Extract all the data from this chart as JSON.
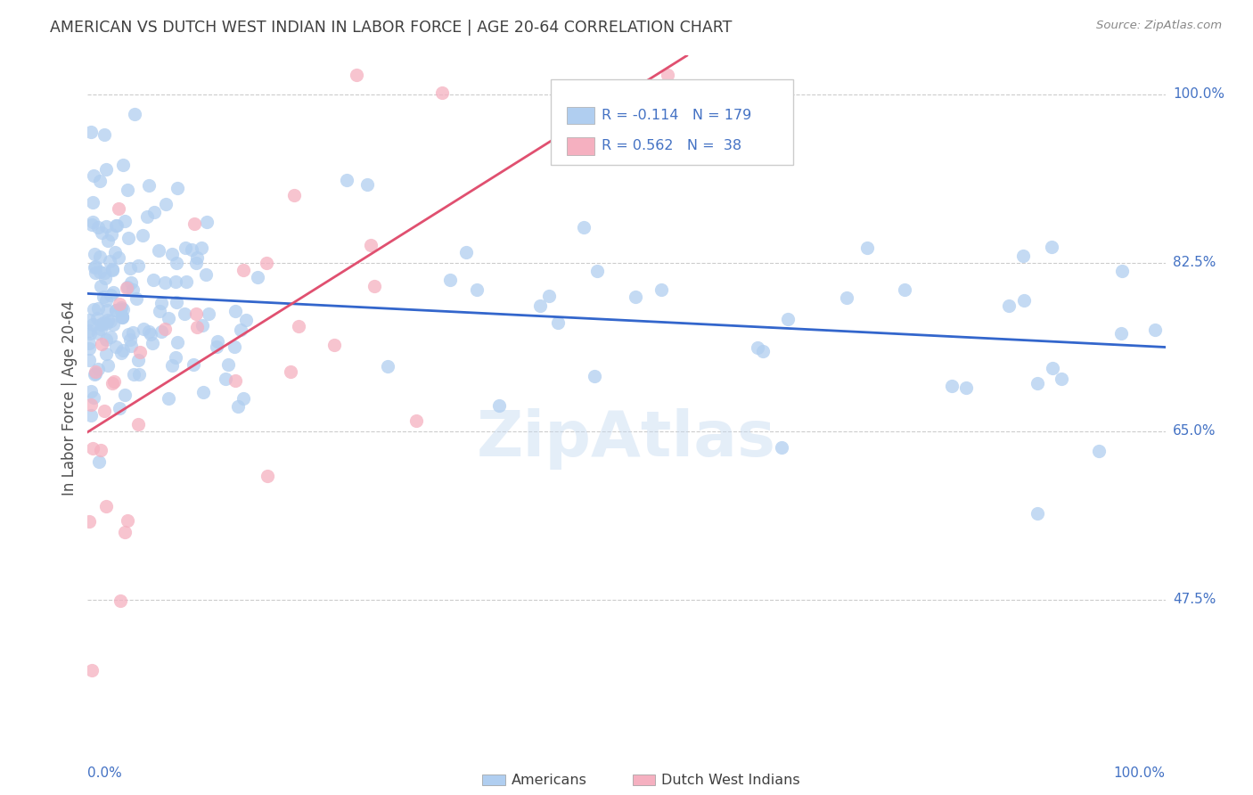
{
  "title": "AMERICAN VS DUTCH WEST INDIAN IN LABOR FORCE | AGE 20-64 CORRELATION CHART",
  "source": "Source: ZipAtlas.com",
  "ylabel": "In Labor Force | Age 20-64",
  "xmin": 0.0,
  "xmax": 1.0,
  "ymin": 0.33,
  "ymax": 1.04,
  "american_R": "-0.114",
  "american_N": "179",
  "dutch_R": "0.562",
  "dutch_N": "38",
  "american_color": "#b0cef0",
  "dutch_color": "#f5b0c0",
  "american_line_color": "#3366cc",
  "dutch_line_color": "#e05070",
  "legend_box_color_american": "#b0cef0",
  "legend_box_color_dutch": "#f5b0c0",
  "background_color": "#ffffff",
  "grid_color": "#cccccc",
  "title_color": "#404040",
  "source_color": "#888888",
  "label_color": "#4472c4",
  "ytick_vals": [
    0.475,
    0.65,
    0.825,
    1.0
  ],
  "ytick_labels": [
    "47.5%",
    "65.0%",
    "82.5%",
    "100.0%"
  ]
}
